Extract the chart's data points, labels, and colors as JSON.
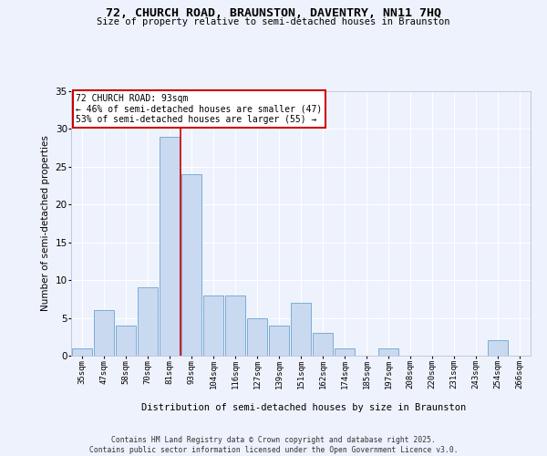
{
  "title1": "72, CHURCH ROAD, BRAUNSTON, DAVENTRY, NN11 7HQ",
  "title2": "Size of property relative to semi-detached houses in Braunston",
  "xlabel": "Distribution of semi-detached houses by size in Braunston",
  "ylabel": "Number of semi-detached properties",
  "categories": [
    "35sqm",
    "47sqm",
    "58sqm",
    "70sqm",
    "81sqm",
    "93sqm",
    "104sqm",
    "116sqm",
    "127sqm",
    "139sqm",
    "151sqm",
    "162sqm",
    "174sqm",
    "185sqm",
    "197sqm",
    "208sqm",
    "220sqm",
    "231sqm",
    "243sqm",
    "254sqm",
    "266sqm"
  ],
  "values": [
    1,
    6,
    4,
    9,
    29,
    24,
    8,
    8,
    5,
    4,
    7,
    3,
    1,
    0,
    1,
    0,
    0,
    0,
    0,
    2,
    0
  ],
  "bar_color": "#c9d9f0",
  "bar_edge_color": "#7badd4",
  "highlight_index": 4,
  "highlight_line_color": "#cc0000",
  "annotation_text": "72 CHURCH ROAD: 93sqm\n← 46% of semi-detached houses are smaller (47)\n53% of semi-detached houses are larger (55) →",
  "annotation_box_color": "#cc0000",
  "ylim": [
    0,
    35
  ],
  "yticks": [
    0,
    5,
    10,
    15,
    20,
    25,
    30,
    35
  ],
  "footer": "Contains HM Land Registry data © Crown copyright and database right 2025.\nContains public sector information licensed under the Open Government Licence v3.0.",
  "bg_color": "#eef2fc",
  "grid_color": "#ffffff"
}
